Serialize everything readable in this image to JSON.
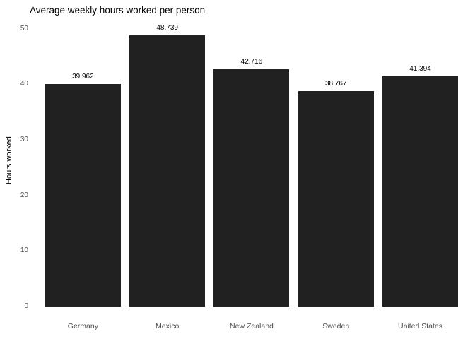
{
  "chart_data": {
    "type": "bar",
    "title": "Average weekly hours worked per person",
    "xlabel": "",
    "ylabel": "Hours worked",
    "categories": [
      "Germany",
      "Mexico",
      "New Zealand",
      "Sweden",
      "United States"
    ],
    "values": [
      39.962,
      48.739,
      42.716,
      38.767,
      41.394
    ],
    "value_labels": [
      "39.962",
      "48.739",
      "42.716",
      "38.767",
      "41.394"
    ],
    "yticks": [
      0,
      10,
      20,
      30,
      40,
      50
    ],
    "ylim": [
      0,
      50
    ],
    "grid": false,
    "legend": false,
    "bar_color": "#212121",
    "title_color": "#000000",
    "value_label_color": "#000000",
    "tick_label_color": "#4d4d4d",
    "background_color": "#ffffff"
  }
}
